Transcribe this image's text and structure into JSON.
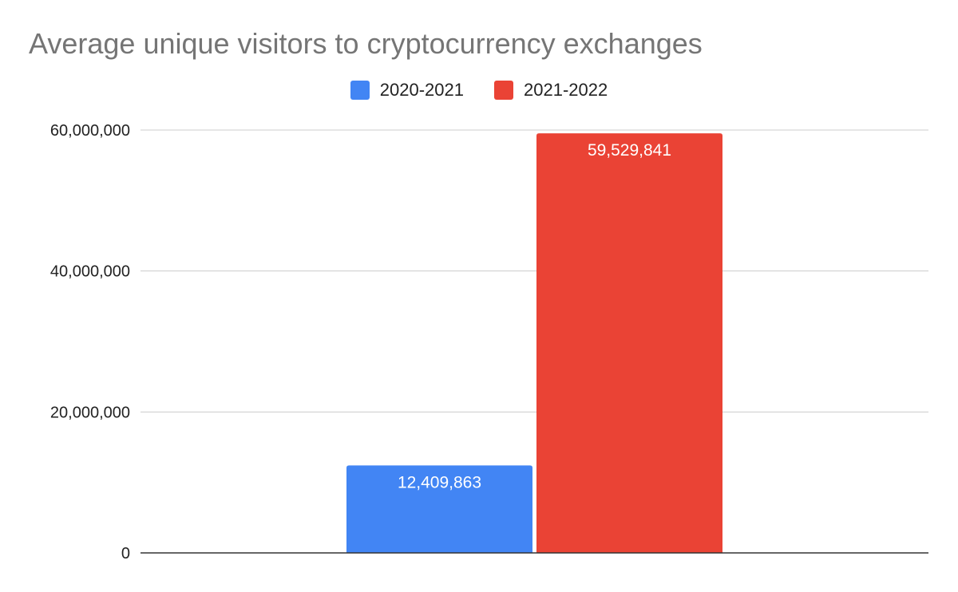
{
  "chart_data": {
    "type": "bar",
    "title": "Average unique visitors to cryptocurrency exchanges",
    "xlabel": "",
    "ylabel": "",
    "categories": [
      ""
    ],
    "series": [
      {
        "name": "2020-2021",
        "color": "#4285F4",
        "values": [
          12409863
        ],
        "labels": [
          "12,409,863"
        ]
      },
      {
        "name": "2021-2022",
        "color": "#EA4335",
        "values": [
          59529841
        ],
        "labels": [
          "59,529,841"
        ]
      }
    ],
    "ylim": [
      0,
      60000000
    ],
    "yticks": [
      {
        "value": 0,
        "label": "0"
      },
      {
        "value": 20000000,
        "label": "20,000,000"
      },
      {
        "value": 40000000,
        "label": "40,000,000"
      },
      {
        "value": 60000000,
        "label": "60,000,000"
      }
    ],
    "grid": true,
    "legend_position": "top-center"
  }
}
